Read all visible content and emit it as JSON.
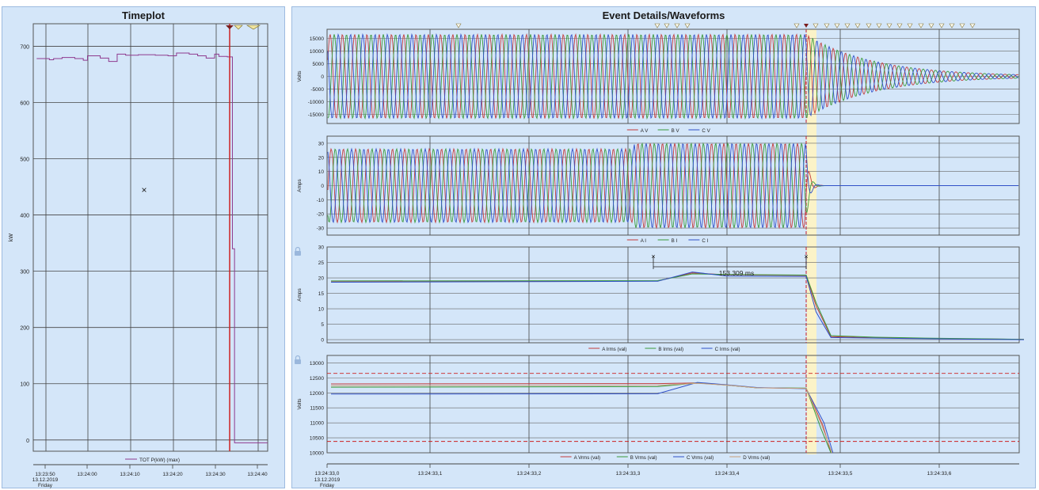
{
  "timeplot": {
    "title": "Timeplot",
    "ylabel": "kW",
    "legend": "TOT P(kW) (max)",
    "cursor_glyph": "×"
  },
  "event": {
    "title": "Event Details/Waveforms",
    "measure_label": "153.309 ms",
    "padlock_icons": [
      "padlock-icon",
      "padlock-icon"
    ]
  },
  "chart_data": [
    {
      "type": "line",
      "title": "Timeplot",
      "ylabel": "kW",
      "ylim": [
        -20,
        740
      ],
      "yticks": [
        0,
        100,
        200,
        300,
        400,
        500,
        600,
        700
      ],
      "xlim": [
        -2,
        46
      ],
      "xticks": [
        {
          "t": 0,
          "label": "13:23:50"
        },
        {
          "t": 10,
          "label": "13:24:00"
        },
        {
          "t": 20,
          "label": "13:24:10"
        },
        {
          "t": 30,
          "label": "13:24:20"
        },
        {
          "t": 40,
          "label": "13:24:30"
        },
        {
          "t": 50,
          "label": "13:24:40"
        }
      ],
      "x_first_label_extra": [
        "13.12.2019",
        "Friday"
      ],
      "grid": true,
      "series": [
        {
          "name": "TOT P(kW) (max)",
          "color": "#8e3a8e",
          "step": true,
          "points": [
            [
              -2,
              678
            ],
            [
              1,
              676
            ],
            [
              2,
              678
            ],
            [
              4,
              680
            ],
            [
              7,
              678
            ],
            [
              9,
              675
            ],
            [
              10,
              683
            ],
            [
              13,
              679
            ],
            [
              15,
              673
            ],
            [
              17,
              686
            ],
            [
              19,
              684
            ],
            [
              22,
              685
            ],
            [
              26,
              684
            ],
            [
              29,
              683
            ],
            [
              31,
              688
            ],
            [
              34,
              686
            ],
            [
              36,
              683
            ],
            [
              38,
              679
            ],
            [
              40,
              686
            ],
            [
              41,
              682
            ],
            [
              43,
              681
            ],
            [
              44.2,
              340
            ],
            [
              44.7,
              -5
            ],
            [
              46,
              -5
            ]
          ]
        }
      ]
    },
    {
      "type": "line",
      "title": "Event Details/Waveforms",
      "ylabel": "Volts",
      "ylim": [
        -18500,
        18500
      ],
      "yticks": [
        -15000,
        -10000,
        -5000,
        0,
        5000,
        10000,
        15000
      ],
      "series": [
        {
          "name": "A V",
          "color": "#c43c3c",
          "amplitude": 16500,
          "phase_deg": 0
        },
        {
          "name": "B V",
          "color": "#3a9a3a",
          "amplitude": 16500,
          "phase_deg": -120
        },
        {
          "name": "C V",
          "color": "#3050c8",
          "amplitude": 16500,
          "phase_deg": 120
        }
      ],
      "decay_after": "13:24:33,48"
    },
    {
      "type": "line",
      "ylabel": "Amps",
      "ylim": [
        -35,
        35
      ],
      "yticks": [
        -30,
        -20,
        -10,
        0,
        10,
        20,
        30
      ],
      "series": [
        {
          "name": "A I",
          "color": "#c43c3c",
          "amplitude": 26,
          "phase_deg": -30
        },
        {
          "name": "B I",
          "color": "#3a9a3a",
          "amplitude": 26,
          "phase_deg": -150
        },
        {
          "name": "C I",
          "color": "#3050c8",
          "amplitude": 26,
          "phase_deg": 90
        }
      ]
    },
    {
      "type": "line",
      "ylabel": "Amps",
      "ylim": [
        -1,
        30
      ],
      "yticks": [
        0,
        5,
        10,
        15,
        20,
        25,
        30
      ],
      "series": [
        {
          "name": "A Irms (val)",
          "color": "#c43c3c",
          "points": [
            [
              0,
              18.9
            ],
            [
              0.33,
              19.0
            ],
            [
              0.365,
              21.6
            ],
            [
              0.4,
              21.0
            ],
            [
              0.48,
              20.8
            ],
            [
              0.49,
              11
            ],
            [
              0.505,
              1.0
            ],
            [
              0.55,
              0.6
            ],
            [
              0.6,
              0.4
            ],
            [
              0.7,
              0.1
            ]
          ]
        },
        {
          "name": "B Irms (val)",
          "color": "#3a9a3a",
          "points": [
            [
              0,
              19.0
            ],
            [
              0.33,
              19.1
            ],
            [
              0.365,
              21.3
            ],
            [
              0.4,
              21.1
            ],
            [
              0.48,
              20.9
            ],
            [
              0.49,
              12
            ],
            [
              0.505,
              1.3
            ],
            [
              0.55,
              0.8
            ],
            [
              0.6,
              0.5
            ],
            [
              0.7,
              0.1
            ]
          ]
        },
        {
          "name": "C Irms (val)",
          "color": "#3050c8",
          "points": [
            [
              0,
              18.6
            ],
            [
              0.33,
              18.9
            ],
            [
              0.365,
              21.9
            ],
            [
              0.4,
              20.6
            ],
            [
              0.48,
              20.5
            ],
            [
              0.49,
              9
            ],
            [
              0.505,
              0.7
            ],
            [
              0.55,
              0.5
            ],
            [
              0.6,
              0.3
            ],
            [
              0.7,
              0.0
            ]
          ]
        }
      ],
      "annotation": "153.309 ms"
    },
    {
      "type": "line",
      "ylabel": "Volts",
      "ylim": [
        10000,
        13250
      ],
      "yticks": [
        10000,
        10500,
        11000,
        11500,
        12000,
        12500,
        13000
      ],
      "xticks": [
        {
          "t": 0.0,
          "label": "13:24:33,0"
        },
        {
          "t": 0.1,
          "label": "13:24:33,1"
        },
        {
          "t": 0.2,
          "label": "13:24:33,2"
        },
        {
          "t": 0.3,
          "label": "13:24:33,3"
        },
        {
          "t": 0.4,
          "label": "13:24:33,4"
        },
        {
          "t": 0.5,
          "label": "13:24:33,5"
        },
        {
          "t": 0.6,
          "label": "13:24:33,6"
        }
      ],
      "x_first_label_extra": [
        "13.12.2019",
        "Friday"
      ],
      "limits": [
        12650,
        10380
      ],
      "series": [
        {
          "name": "A Vrms (val)",
          "color": "#c43c3c",
          "points": [
            [
              0,
              12300
            ],
            [
              0.33,
              12310
            ],
            [
              0.37,
              12330
            ],
            [
              0.4,
              12260
            ],
            [
              0.43,
              12170
            ],
            [
              0.48,
              12150
            ],
            [
              0.497,
              10900
            ],
            [
              0.505,
              9900
            ]
          ]
        },
        {
          "name": "B Vrms (val)",
          "color": "#3a9a3a",
          "points": [
            [
              0,
              12190
            ],
            [
              0.33,
              12210
            ],
            [
              0.37,
              12330
            ],
            [
              0.4,
              12260
            ],
            [
              0.43,
              12170
            ],
            [
              0.48,
              12160
            ],
            [
              0.495,
              10800
            ],
            [
              0.505,
              9900
            ]
          ]
        },
        {
          "name": "C Vrms (val)",
          "color": "#3050c8",
          "points": [
            [
              0,
              11960
            ],
            [
              0.33,
              11970
            ],
            [
              0.37,
              12350
            ],
            [
              0.4,
              12270
            ],
            [
              0.43,
              12180
            ],
            [
              0.48,
              12140
            ],
            [
              0.498,
              11000
            ],
            [
              0.507,
              9900
            ]
          ]
        },
        {
          "name": "D Vrms (val)",
          "color": "#c9a07a",
          "points": [
            [
              0,
              12240
            ],
            [
              0.33,
              12250
            ],
            [
              0.37,
              12320
            ],
            [
              0.4,
              12260
            ],
            [
              0.43,
              12170
            ],
            [
              0.48,
              12150
            ],
            [
              0.496,
              10900
            ],
            [
              0.506,
              9900
            ]
          ]
        }
      ]
    }
  ]
}
